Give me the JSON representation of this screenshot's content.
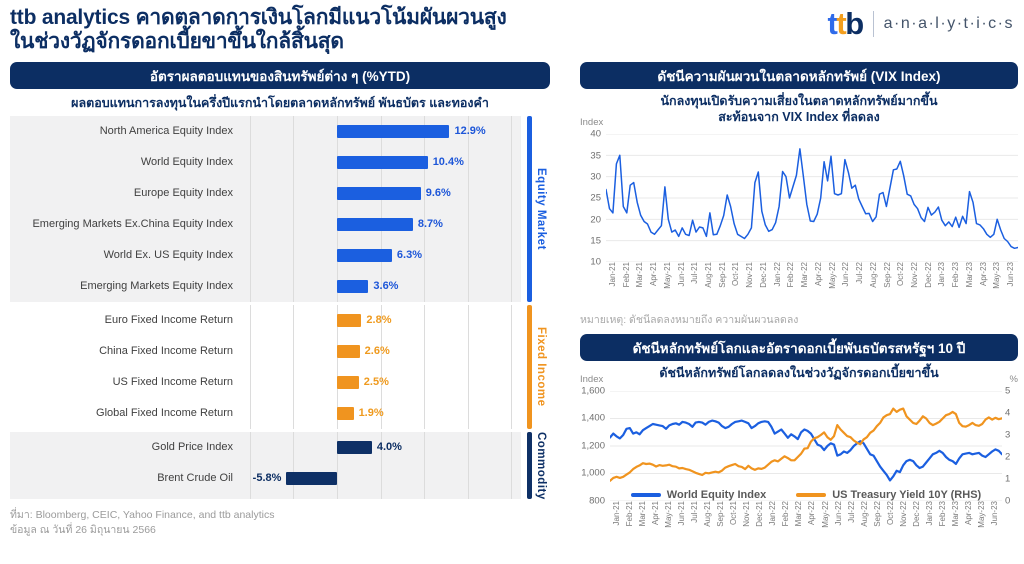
{
  "header": {
    "title_line1": "ttb analytics คาดตลาดการเงินโลกมีแนวโน้มผันผวนสูง",
    "title_line2": "ในช่วงวัฏจักรดอกเบี้ยขาขึ้นใกล้สิ้นสุด",
    "logo": {
      "t1": "t",
      "t2": "t",
      "b": "b",
      "suffix": "a·n·a·l·y·t·i·c·s"
    }
  },
  "left_panel": {
    "source_line1": "ที่มา: Bloomberg, CEIC, Yahoo Finance, and ttb analytics",
    "source_line2": "ข้อมูล ณ วันที่ 26 มิถุนายน 2566"
  },
  "colors": {
    "navy": "#0c2e63",
    "blue": "#1b5fe0",
    "orange": "#f0941f",
    "section_gray": "#f1f1f2",
    "grid": "#dcdcdc"
  },
  "chart_data": [
    {
      "type": "bar",
      "orientation": "horizontal",
      "title": "อัตราผลตอบแทนของสินทรัพย์ต่าง ๆ (%YTD)",
      "subtitle": "ผลตอบแทนการลงทุนในครึ่งปีแรกนำโดยตลาดหลักทรัพย์ พันธบัตร และทองคำ",
      "unit": "%",
      "xlim": [
        -10.5,
        21
      ],
      "grid_step": 5,
      "groups": [
        {
          "name": "Equity Market",
          "color": "#1b5fe0",
          "value_color": "#1d56d8",
          "bg": "#f1f1f2",
          "items": [
            {
              "label": "North America Equity Index",
              "value": 12.9,
              "display": "12.9%"
            },
            {
              "label": "World Equity Index",
              "value": 10.4,
              "display": "10.4%"
            },
            {
              "label": "Europe Equity Index",
              "value": 9.6,
              "display": "9.6%"
            },
            {
              "label": "Emerging Markets Ex.China Equity Index",
              "value": 8.7,
              "display": "8.7%"
            },
            {
              "label": "World Ex. US Equity Index",
              "value": 6.3,
              "display": "6.3%"
            },
            {
              "label": "Emerging Markets Equity Index",
              "value": 3.6,
              "display": "3.6%"
            }
          ]
        },
        {
          "name": "Fixed Income",
          "color": "#f0941f",
          "value_color": "#ef9a1e",
          "bg": "#ffffff",
          "items": [
            {
              "label": "Euro Fixed Income Return",
              "value": 2.8,
              "display": "2.8%"
            },
            {
              "label": "China Fixed Income Return",
              "value": 2.6,
              "display": "2.6%"
            },
            {
              "label": "US Fixed Income Return",
              "value": 2.5,
              "display": "2.5%"
            },
            {
              "label": "Global Fixed Income Return",
              "value": 1.9,
              "display": "1.9%"
            }
          ]
        },
        {
          "name": "Commodity",
          "color": "#0e3066",
          "value_color": "#0c2e63",
          "bg": "#f1f1f2",
          "items": [
            {
              "label": "Gold Price Index",
              "value": 4.0,
              "display": "4.0%"
            },
            {
              "label": "Brent Crude Oil",
              "value": -5.8,
              "display": "-5.8%"
            }
          ]
        }
      ]
    },
    {
      "type": "line",
      "title": "ดัชนีความผันผวนในตลาดหลักทรัพย์  (VIX Index)",
      "subtitle_line1": "นักลงทุนเปิดรับความเสี่ยงในตลาดหลักทรัพย์มากขึ้น",
      "subtitle_line2": "สะท้อนจาก VIX Index ที่ลดลง",
      "note": "หมายเหตุ: ดัชนีลดลงหมายถึง ความผันผวนลดลง",
      "ylabel": "Index",
      "ylim": [
        10,
        40
      ],
      "yticks": [
        "40",
        "35",
        "30",
        "25",
        "20",
        "15",
        "10"
      ],
      "grid": true,
      "x_categories": [
        "Jan-21",
        "Feb-21",
        "Mar-21",
        "Apr-21",
        "May-21",
        "Jun-21",
        "Jul-21",
        "Aug-21",
        "Sep-21",
        "Oct-21",
        "Nov-21",
        "Dec-21",
        "Jan-22",
        "Feb-22",
        "Mar-22",
        "Apr-22",
        "May-22",
        "Jun-22",
        "Jul-22",
        "Aug-22",
        "Sep-22",
        "Oct-22",
        "Nov-22",
        "Dec-22",
        "Jan-23",
        "Feb-23",
        "Mar-23",
        "Apr-23",
        "May-23",
        "Jun-23"
      ],
      "series": [
        {
          "name": "VIX Index",
          "color": "#1b5fe0",
          "width": 1.5,
          "values": [
            27,
            22.5,
            21.5,
            33,
            35,
            23,
            21.5,
            28,
            28.6,
            24,
            21,
            19.5,
            18.9,
            17,
            16.5,
            17.5,
            18.5,
            27.6,
            20,
            17,
            17.5,
            16,
            18,
            16.5,
            16.2,
            19.8,
            17,
            18.2,
            18,
            16,
            21.5,
            16.4,
            16.5,
            18.5,
            20.9,
            25.7,
            23,
            19,
            16.5,
            16,
            15.5,
            16.5,
            18,
            28.6,
            31.1,
            21.9,
            18.7,
            17.2,
            17.6,
            19.2,
            23,
            31.2,
            30,
            25,
            27.7,
            30.3,
            36.5,
            30.2,
            23.5,
            19.6,
            19.5,
            21.2,
            25,
            33.5,
            29,
            34.8,
            26,
            25.7,
            26,
            34,
            31,
            27.3,
            28,
            24.8,
            23,
            21.3,
            21.4,
            19.5,
            20.6,
            25.9,
            26.3,
            23,
            27.3,
            31.6,
            31.8,
            33.6,
            30.2,
            25.9,
            25.5,
            23.5,
            22.5,
            20.4,
            19.5,
            22.8,
            21,
            21.7,
            22.9,
            19.8,
            18.5,
            19.4,
            18.3,
            20.5,
            18.1,
            20.7,
            19,
            26.5,
            24,
            19,
            18.7,
            17.8,
            16.5,
            15.8,
            16.5,
            20,
            17.5,
            15.5,
            14.8,
            13.6,
            13.2,
            13.4
          ]
        }
      ]
    },
    {
      "type": "line",
      "dual_axis": true,
      "title": "ดัชนีหลักทรัพย์โลกและอัตราดอกเบี้ยพันธบัตรสหรัฐฯ  10 ปี",
      "subtitle": "ดัชนีหลักทรัพย์โลกลดลงในช่วงวัฏจักรดอกเบี้ยขาขึ้น",
      "ylabel_left": "Index",
      "ylabel_right": "%",
      "ylim_left": [
        800,
        1600
      ],
      "ylim_right": [
        0,
        5
      ],
      "yticks_left": [
        "1,600",
        "1,400",
        "1,200",
        "1,000",
        "800"
      ],
      "yticks_right": [
        "5",
        "4",
        "3",
        "2",
        "1",
        "0"
      ],
      "grid": true,
      "legend_position": "bottom-center",
      "x_categories": [
        "Jan-21",
        "Feb-21",
        "Mar-21",
        "Apr-21",
        "May-21",
        "Jun-21",
        "Jul-21",
        "Aug-21",
        "Sep-21",
        "Oct-21",
        "Nov-21",
        "Dec-21",
        "Jan-22",
        "Feb-22",
        "Mar-22",
        "Apr-22",
        "May-22",
        "Jun-22",
        "Jul-22",
        "Aug-22",
        "Sep-22",
        "Oct-22",
        "Nov-22",
        "Dec-22",
        "Jan-23",
        "Feb-23",
        "Mar-23",
        "Apr-23",
        "May-23",
        "Jun-23"
      ],
      "series": [
        {
          "name": "World Equity Index",
          "axis": "left",
          "color": "#1b5fe0",
          "width": 2.2,
          "values": [
            1262,
            1290,
            1270,
            1255,
            1280,
            1325,
            1330,
            1290,
            1300,
            1285,
            1315,
            1330,
            1345,
            1360,
            1355,
            1350,
            1345,
            1325,
            1350,
            1360,
            1365,
            1355,
            1375,
            1370,
            1360,
            1340,
            1370,
            1375,
            1370,
            1355,
            1375,
            1385,
            1380,
            1370,
            1345,
            1330,
            1340,
            1360,
            1375,
            1380,
            1385,
            1375,
            1365,
            1330,
            1345,
            1365,
            1375,
            1380,
            1375,
            1340,
            1290,
            1305,
            1320,
            1290,
            1260,
            1285,
            1270,
            1250,
            1300,
            1320,
            1310,
            1290,
            1250,
            1210,
            1200,
            1170,
            1200,
            1220,
            1210,
            1130,
            1140,
            1160,
            1150,
            1170,
            1200,
            1220,
            1235,
            1220,
            1180,
            1140,
            1130,
            1090,
            1050,
            1020,
            990,
            950,
            980,
            1020,
            1010,
            1060,
            1090,
            1100,
            1090,
            1060,
            1040,
            1050,
            1080,
            1110,
            1140,
            1150,
            1165,
            1150,
            1120,
            1100,
            1090,
            1070,
            1110,
            1140,
            1145,
            1150,
            1140,
            1145,
            1150,
            1130,
            1120,
            1140,
            1160,
            1175,
            1165,
            1140
          ]
        },
        {
          "name": "US Treasury Yield 10Y (RHS)",
          "axis": "right",
          "color": "#f0941f",
          "width": 2.2,
          "values": [
            0.92,
            1.05,
            1.1,
            1.05,
            1.1,
            1.2,
            1.3,
            1.45,
            1.55,
            1.62,
            1.72,
            1.68,
            1.7,
            1.65,
            1.57,
            1.63,
            1.6,
            1.62,
            1.65,
            1.58,
            1.56,
            1.48,
            1.5,
            1.45,
            1.42,
            1.35,
            1.28,
            1.23,
            1.18,
            1.28,
            1.26,
            1.3,
            1.33,
            1.3,
            1.38,
            1.52,
            1.58,
            1.63,
            1.68,
            1.58,
            1.55,
            1.45,
            1.6,
            1.48,
            1.42,
            1.48,
            1.46,
            1.52,
            1.65,
            1.78,
            1.85,
            1.8,
            1.92,
            2.03,
            1.95,
            1.85,
            1.85,
            2.0,
            2.15,
            2.38,
            2.4,
            2.7,
            2.85,
            2.9,
            3.0,
            3.12,
            2.9,
            2.78,
            2.95,
            3.45,
            3.25,
            3.1,
            2.95,
            2.9,
            2.75,
            2.65,
            2.58,
            2.8,
            2.9,
            3.1,
            3.2,
            3.4,
            3.55,
            3.8,
            3.9,
            3.95,
            4.2,
            4.05,
            4.15,
            4.2,
            3.85,
            3.7,
            3.55,
            3.5,
            3.65,
            3.85,
            3.75,
            3.55,
            3.45,
            3.52,
            3.6,
            3.75,
            3.9,
            3.95,
            4.05,
            3.95,
            3.55,
            3.4,
            3.38,
            3.45,
            3.55,
            3.45,
            3.42,
            3.5,
            3.7,
            3.8,
            3.7,
            3.78,
            3.72,
            3.76
          ]
        }
      ]
    }
  ]
}
